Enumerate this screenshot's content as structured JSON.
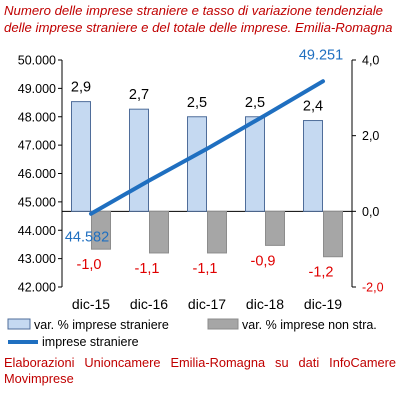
{
  "title_lines": [
    "Numero delle imprese straniere e tasso di variazione tendenziale",
    "delle imprese straniere e del totale delle imprese. Emilia-Romagna"
  ],
  "source_lines": [
    [
      "Elaborazioni",
      "Unioncamere",
      "Emilia-Romagna",
      "su",
      "dati",
      "InfoCamere"
    ],
    "Movimprese"
  ],
  "colors": {
    "title": "#c00000",
    "bar_stranieri_fill": "#c5d9f1",
    "bar_stranieri_stroke": "#4f6d9a",
    "bar_non_stra_fill": "#a6a6a6",
    "line": "#1f6fc0",
    "negative_label": "#e00000",
    "line_label": "#1f6fc0"
  },
  "chart_data": {
    "type": "bar",
    "categories": [
      "dic-15",
      "dic-16",
      "dic-17",
      "dic-18",
      "dic-19"
    ],
    "y_left": {
      "min": 42000,
      "max": 50000,
      "ticks": [
        "42.000",
        "43.000",
        "44.000",
        "45.000",
        "46.000",
        "47.000",
        "48.000",
        "49.000",
        "50.000"
      ]
    },
    "y_right": {
      "min": -2,
      "max": 4,
      "ticks": [
        "-2,0",
        "0,0",
        "2,0",
        "4,0"
      ]
    },
    "series": [
      {
        "name": "var. % imprese straniere",
        "type": "bar",
        "axis": "right",
        "values": [
          2.9,
          2.7,
          2.5,
          2.5,
          2.4
        ],
        "labels": [
          "2,9",
          "2,7",
          "2,5",
          "2,5",
          "2,4"
        ]
      },
      {
        "name": "var. % imprese non stra.",
        "type": "bar",
        "axis": "right",
        "values": [
          -1.0,
          -1.1,
          -1.1,
          -0.9,
          -1.2
        ],
        "labels": [
          "-1,0",
          "-1,1",
          "-1,1",
          "-0,9",
          "-1,2"
        ]
      },
      {
        "name": "imprese straniere",
        "type": "line",
        "axis": "left",
        "values": [
          44582,
          45750,
          46870,
          48050,
          49251
        ],
        "labels": [
          "44.582",
          "",
          "",
          "",
          "49.251"
        ]
      }
    ],
    "legend": "bottom",
    "grid": false
  }
}
